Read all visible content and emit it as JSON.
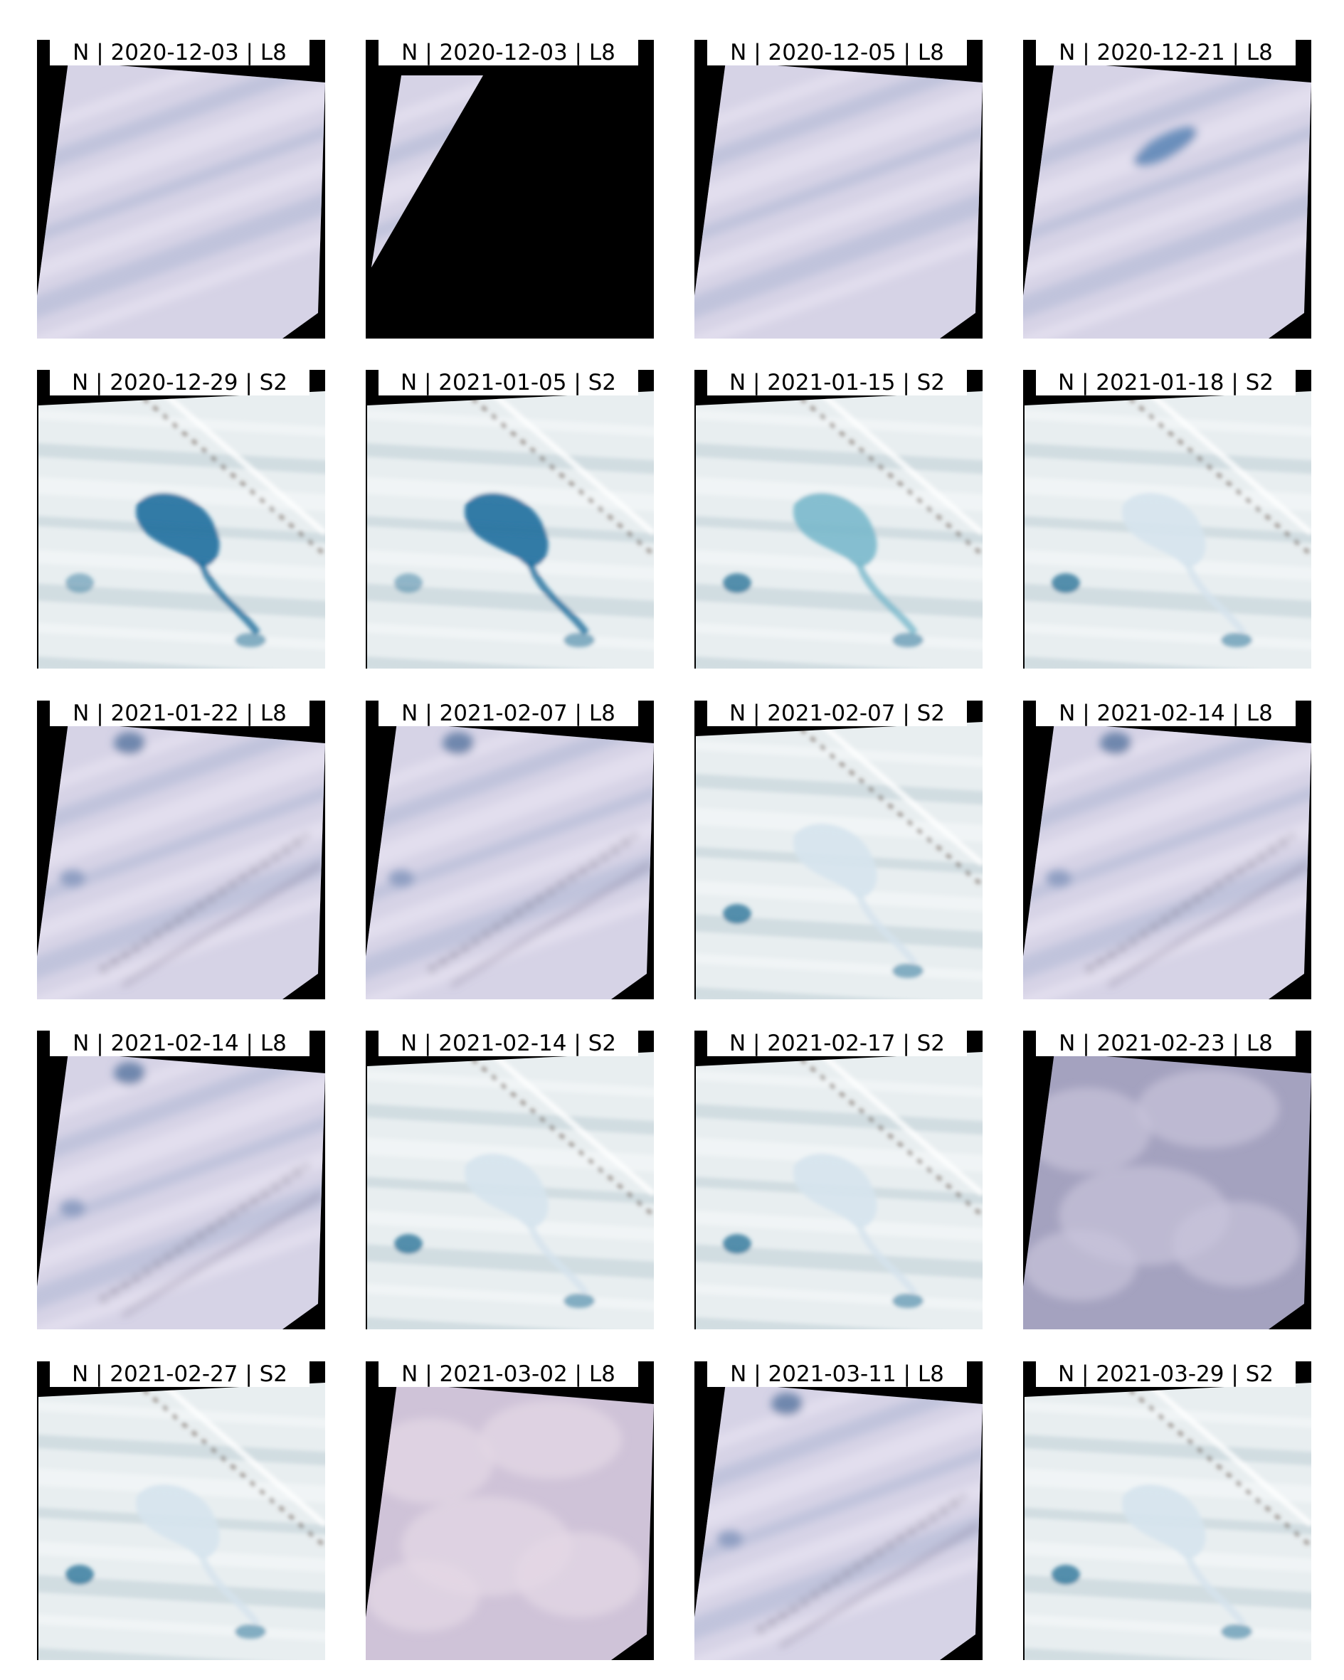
{
  "panels": [
    {
      "label": "N | 2020-12-03 | L8",
      "sensor": "L8",
      "scene": "landsat-snow",
      "coverage": "full"
    },
    {
      "label": "N | 2020-12-03 | L8",
      "sensor": "L8",
      "scene": "landsat-partial",
      "coverage": "partial"
    },
    {
      "label": "N | 2020-12-05 | L8",
      "sensor": "L8",
      "scene": "landsat-snow",
      "coverage": "full"
    },
    {
      "label": "N | 2020-12-21 | L8",
      "sensor": "L8",
      "scene": "landsat-snow-lake",
      "coverage": "full"
    },
    {
      "label": "N | 2020-12-29 | S2",
      "sensor": "S2",
      "scene": "lake-dark",
      "coverage": "full"
    },
    {
      "label": "N | 2021-01-05 | S2",
      "sensor": "S2",
      "scene": "lake-dark",
      "coverage": "full"
    },
    {
      "label": "N | 2021-01-15 | S2",
      "sensor": "S2",
      "scene": "lake-light",
      "coverage": "full"
    },
    {
      "label": "N | 2021-01-18 | S2",
      "sensor": "S2",
      "scene": "lake-frozen",
      "coverage": "full"
    },
    {
      "label": "N | 2021-01-22 | L8",
      "sensor": "L8",
      "scene": "landsat-frozen",
      "coverage": "full"
    },
    {
      "label": "N | 2021-02-07 | L8",
      "sensor": "L8",
      "scene": "landsat-frozen",
      "coverage": "full"
    },
    {
      "label": "N | 2021-02-07 | S2",
      "sensor": "S2",
      "scene": "lake-frozen",
      "coverage": "full"
    },
    {
      "label": "N | 2021-02-14 | L8",
      "sensor": "L8",
      "scene": "landsat-frozen",
      "coverage": "full"
    },
    {
      "label": "N | 2021-02-14 | L8",
      "sensor": "L8",
      "scene": "landsat-frozen",
      "coverage": "full"
    },
    {
      "label": "N | 2021-02-14 | S2",
      "sensor": "S2",
      "scene": "lake-frozen",
      "coverage": "full"
    },
    {
      "label": "N | 2021-02-17 | S2",
      "sensor": "S2",
      "scene": "lake-frozen",
      "coverage": "full"
    },
    {
      "label": "N | 2021-02-23 | L8",
      "sensor": "L8",
      "scene": "landsat-cloud",
      "coverage": "full"
    },
    {
      "label": "N | 2021-02-27 | S2",
      "sensor": "S2",
      "scene": "lake-frozen",
      "coverage": "full"
    },
    {
      "label": "N | 2021-03-02 | L8",
      "sensor": "L8",
      "scene": "landsat-cloud-pink",
      "coverage": "full"
    },
    {
      "label": "N | 2021-03-11 | L8",
      "sensor": "L8",
      "scene": "landsat-frozen",
      "coverage": "full"
    },
    {
      "label": "N | 2021-03-29 | S2",
      "sensor": "S2",
      "scene": "lake-frozen",
      "coverage": "full"
    }
  ],
  "colors": {
    "background": "#ffffff",
    "nodata": "#000000",
    "landsat_base": "#d6d3e6",
    "landsat_streak": "#b9bfd8",
    "landsat_cloud": "#a4a2bf",
    "landsat_cloud_pink": "#cfc3d8",
    "s2_base": "#e8eef0",
    "s2_streak": "#c7d6dc",
    "lake_dark": "#1e6f9e",
    "lake_light": "#7ab9cc",
    "lake_frozen": "#d6e4ee",
    "pond": "#3a7ea0",
    "rock": "#6a5a4e"
  }
}
